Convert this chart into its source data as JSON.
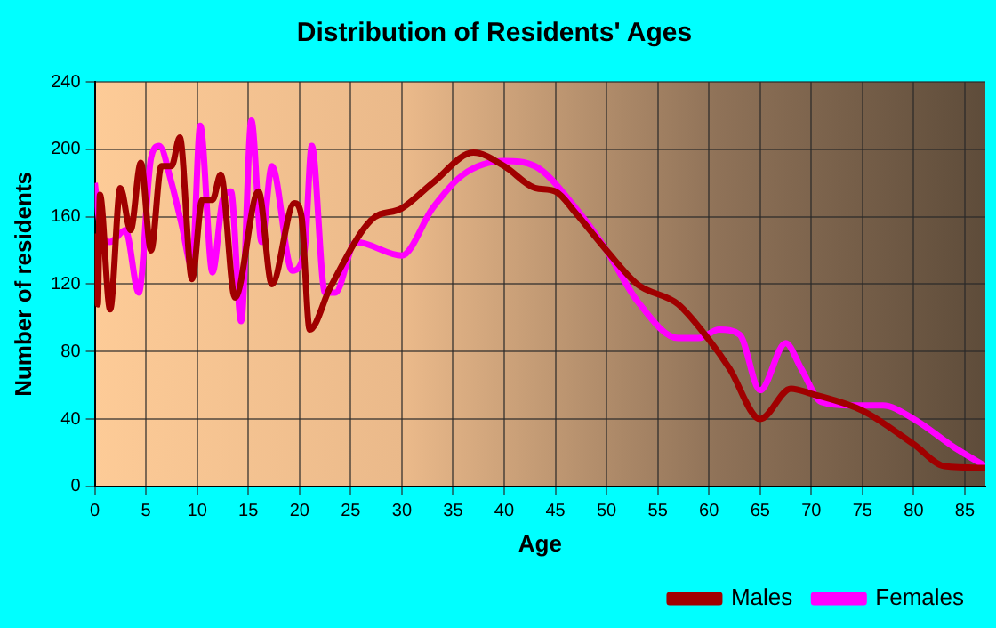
{
  "chart_data": {
    "type": "line",
    "title": "Distribution of Residents' Ages",
    "xlabel": "Age",
    "ylabel": "Number of residents",
    "xlim": [
      0,
      87
    ],
    "xticks": [
      0,
      5,
      10,
      15,
      20,
      25,
      30,
      35,
      40,
      45,
      50,
      55,
      60,
      65,
      70,
      75,
      80,
      85
    ],
    "ylim": [
      0,
      240
    ],
    "yticks": [
      0,
      40,
      80,
      120,
      160,
      200,
      240
    ],
    "grid": true,
    "legend": "bottom right",
    "series": [
      {
        "name": "Males",
        "color": "#a00000",
        "x": [
          0,
          0.3,
          0.5,
          1.5,
          2.5,
          3.5,
          4.5,
          5.5,
          6.5,
          7.5,
          8.3,
          9.5,
          10.5,
          11.5,
          12.3,
          13.7,
          16,
          17.3,
          19.5,
          20.2,
          21,
          23,
          27,
          30,
          33,
          37,
          40,
          43,
          45,
          47,
          50,
          53,
          57,
          60,
          62,
          65,
          68,
          70,
          75,
          80,
          83,
          87
        ],
        "values": [
          150,
          108,
          173,
          105,
          177,
          152,
          192,
          140,
          190,
          190,
          207,
          123,
          170,
          170,
          185,
          112,
          175,
          120,
          168,
          160,
          93,
          118,
          158,
          165,
          180,
          198,
          190,
          177,
          175,
          162,
          140,
          120,
          108,
          87,
          70,
          40,
          58,
          55,
          45,
          25,
          12,
          11
        ]
      },
      {
        "name": "Females",
        "color": "#ff00ff",
        "x": [
          0,
          0.5,
          1.5,
          3,
          4.3,
          5.5,
          6.3,
          7.5,
          8.5,
          9.5,
          10.3,
          11.5,
          12.5,
          13.3,
          14.3,
          15.3,
          16.3,
          17.3,
          19.3,
          20.5,
          21.2,
          22.5,
          23.5,
          25.5,
          30,
          33,
          36,
          40,
          43,
          47,
          50,
          53,
          57,
          59,
          61,
          63,
          65,
          67.5,
          69,
          71,
          74,
          77,
          80,
          84,
          87
        ],
        "values": [
          180,
          155,
          145,
          152,
          115,
          195,
          202,
          180,
          155,
          130,
          214,
          127,
          170,
          175,
          98,
          217,
          145,
          190,
          128,
          140,
          202,
          115,
          115,
          145,
          137,
          165,
          185,
          193,
          190,
          165,
          140,
          110,
          88,
          88,
          93,
          90,
          57,
          85,
          70,
          50,
          48,
          48,
          40,
          23,
          12
        ]
      }
    ]
  }
}
